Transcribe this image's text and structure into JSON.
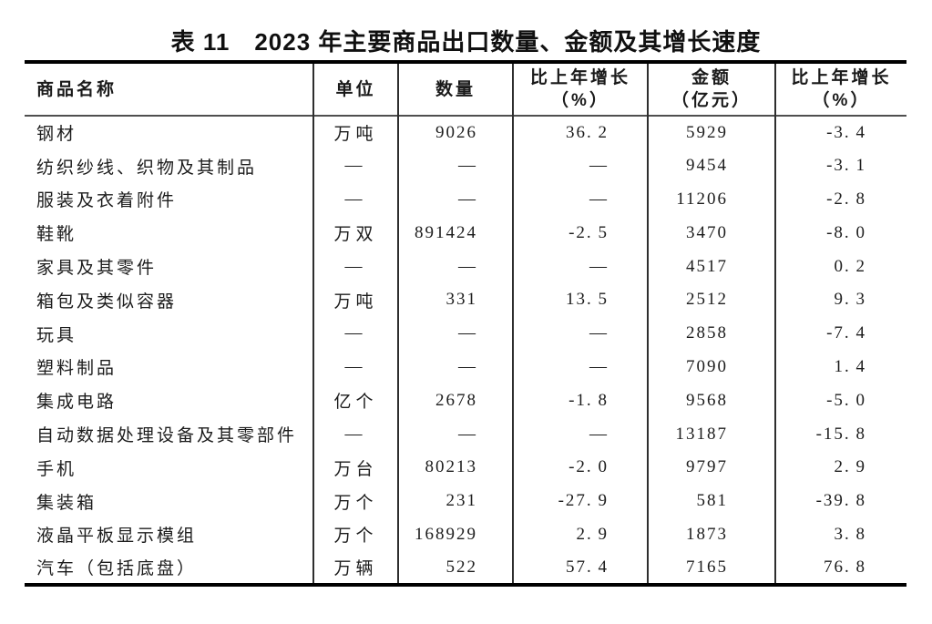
{
  "title": "表 11　2023 年主要商品出口数量、金额及其增长速度",
  "placeholder": "—",
  "table": {
    "columns": [
      {
        "key": "name",
        "label": "商品名称",
        "sublabel": ""
      },
      {
        "key": "unit",
        "label": "单位",
        "sublabel": ""
      },
      {
        "key": "quantity",
        "label": "数量",
        "sublabel": ""
      },
      {
        "key": "quantity_growth",
        "label": "比上年增长",
        "sublabel": "（%）"
      },
      {
        "key": "amount",
        "label": "金额",
        "sublabel": "（亿元）"
      },
      {
        "key": "amount_growth",
        "label": "比上年增长",
        "sublabel": "（%）"
      }
    ],
    "rows": [
      {
        "name": "钢材",
        "unit": "万吨",
        "quantity": "9026",
        "quantity_growth": "36.2",
        "amount": "5929",
        "amount_growth": "-3.4"
      },
      {
        "name": "纺织纱线、织物及其制品",
        "unit": "—",
        "quantity": "—",
        "quantity_growth": "—",
        "amount": "9454",
        "amount_growth": "-3.1"
      },
      {
        "name": "服装及衣着附件",
        "unit": "—",
        "quantity": "—",
        "quantity_growth": "—",
        "amount": "11206",
        "amount_growth": "-2.8"
      },
      {
        "name": "鞋靴",
        "unit": "万双",
        "quantity": "891424",
        "quantity_growth": "-2.5",
        "amount": "3470",
        "amount_growth": "-8.0"
      },
      {
        "name": "家具及其零件",
        "unit": "—",
        "quantity": "—",
        "quantity_growth": "—",
        "amount": "4517",
        "amount_growth": "0.2"
      },
      {
        "name": "箱包及类似容器",
        "unit": "万吨",
        "quantity": "331",
        "quantity_growth": "13.5",
        "amount": "2512",
        "amount_growth": "9.3"
      },
      {
        "name": "玩具",
        "unit": "—",
        "quantity": "—",
        "quantity_growth": "—",
        "amount": "2858",
        "amount_growth": "-7.4"
      },
      {
        "name": "塑料制品",
        "unit": "—",
        "quantity": "—",
        "quantity_growth": "—",
        "amount": "7090",
        "amount_growth": "1.4"
      },
      {
        "name": "集成电路",
        "unit": "亿个",
        "quantity": "2678",
        "quantity_growth": "-1.8",
        "amount": "9568",
        "amount_growth": "-5.0"
      },
      {
        "name": "自动数据处理设备及其零部件",
        "unit": "—",
        "quantity": "—",
        "quantity_growth": "—",
        "amount": "13187",
        "amount_growth": "-15.8"
      },
      {
        "name": "手机",
        "unit": "万台",
        "quantity": "80213",
        "quantity_growth": "-2.0",
        "amount": "9797",
        "amount_growth": "2.9"
      },
      {
        "name": "集装箱",
        "unit": "万个",
        "quantity": "231",
        "quantity_growth": "-27.9",
        "amount": "581",
        "amount_growth": "-39.8"
      },
      {
        "name": "液晶平板显示模组",
        "unit": "万个",
        "quantity": "168929",
        "quantity_growth": "2.9",
        "amount": "1873",
        "amount_growth": "3.8"
      },
      {
        "name": "汽车（包括底盘）",
        "unit": "万辆",
        "quantity": "522",
        "quantity_growth": "57.4",
        "amount": "7165",
        "amount_growth": "76.8"
      }
    ]
  }
}
